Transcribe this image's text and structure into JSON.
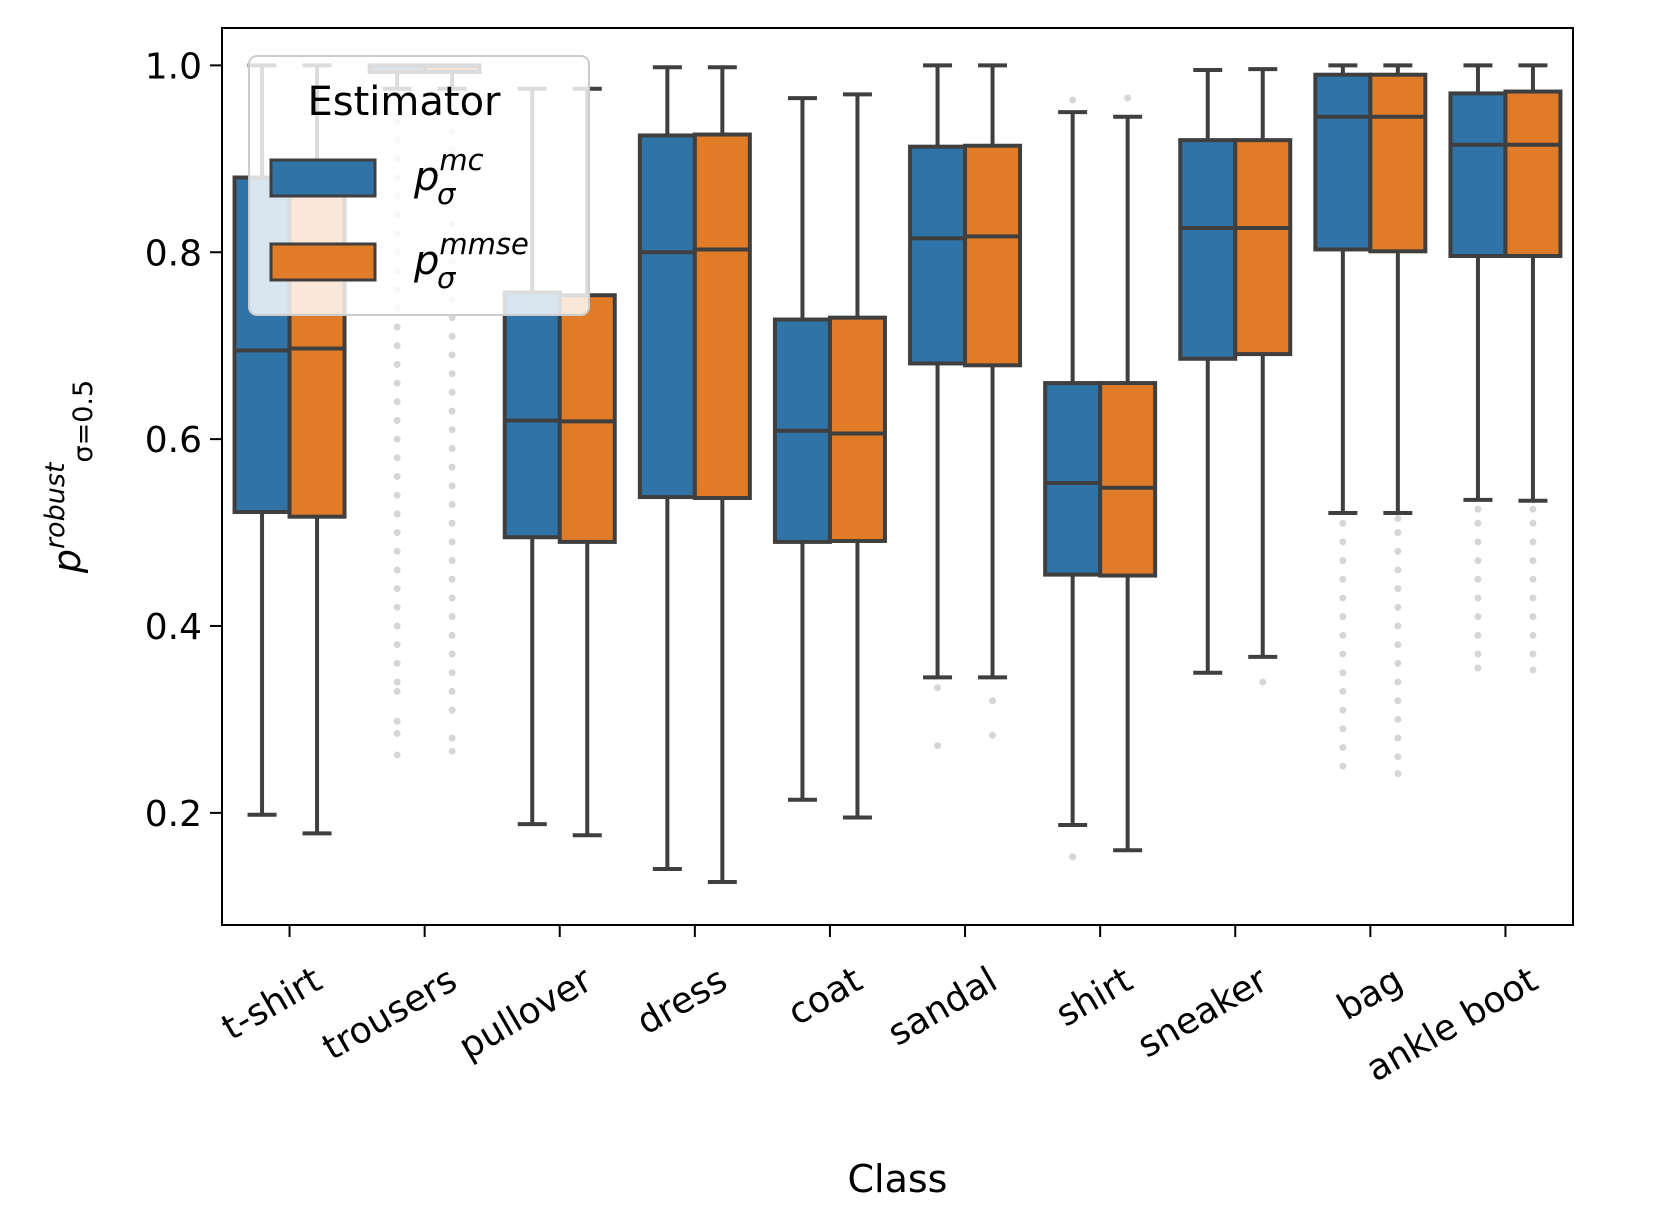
{
  "chart_data": {
    "type": "boxplot",
    "xlabel": "Class",
    "ylabel": {
      "base": "p",
      "sup": "robust",
      "sub": "σ=0.5"
    },
    "ylim": [
      0.08,
      1.04
    ],
    "yticks": [
      0.2,
      0.4,
      0.6,
      0.8,
      1.0
    ],
    "ytick_labels": [
      "0.2",
      "0.4",
      "0.6",
      "0.8",
      "1.0"
    ],
    "categories": [
      "t-shirt",
      "trousers",
      "pullover",
      "dress",
      "coat",
      "sandal",
      "shirt",
      "sneaker",
      "bag",
      "ankle boot"
    ],
    "grid": false,
    "legend": {
      "title": "Estimator",
      "placement": "top-left",
      "entries": [
        {
          "base": "p",
          "sup": "mc",
          "sub": "σ"
        },
        {
          "base": "p",
          "sup": "mmse",
          "sub": "σ"
        }
      ]
    },
    "series": [
      {
        "color": "#2f73a7",
        "boxes": [
          {
            "whislo": 0.198,
            "q1": 0.522,
            "med": 0.695,
            "q3": 0.88,
            "whishi": 1.0,
            "fliers": []
          },
          {
            "whislo": 0.975,
            "q1": 0.993,
            "med": 0.999,
            "q3": 1.0,
            "whishi": 1.0,
            "fliers": [
              0.262,
              0.285,
              0.298,
              0.33,
              0.34,
              0.36,
              0.38,
              0.4,
              0.42,
              0.44,
              0.46,
              0.48,
              0.5,
              0.52,
              0.54,
              0.56,
              0.58,
              0.6,
              0.62,
              0.64,
              0.66,
              0.68,
              0.7,
              0.72,
              0.74,
              0.76,
              0.78,
              0.8,
              0.82,
              0.84,
              0.86,
              0.88,
              0.9,
              0.92,
              0.94,
              0.96
            ]
          },
          {
            "whislo": 0.188,
            "q1": 0.495,
            "med": 0.62,
            "q3": 0.757,
            "whishi": 0.975,
            "fliers": []
          },
          {
            "whislo": 0.14,
            "q1": 0.538,
            "med": 0.8,
            "q3": 0.925,
            "whishi": 0.998,
            "fliers": []
          },
          {
            "whislo": 0.214,
            "q1": 0.49,
            "med": 0.609,
            "q3": 0.728,
            "whishi": 0.965,
            "fliers": []
          },
          {
            "whislo": 0.345,
            "q1": 0.681,
            "med": 0.815,
            "q3": 0.913,
            "whishi": 1.0,
            "fliers": [
              0.334,
              0.272
            ]
          },
          {
            "whislo": 0.187,
            "q1": 0.455,
            "med": 0.553,
            "q3": 0.66,
            "whishi": 0.95,
            "fliers": [
              0.963,
              0.153
            ]
          },
          {
            "whislo": 0.35,
            "q1": 0.686,
            "med": 0.826,
            "q3": 0.92,
            "whishi": 0.995,
            "fliers": []
          },
          {
            "whislo": 0.521,
            "q1": 0.803,
            "med": 0.945,
            "q3": 0.99,
            "whishi": 1.0,
            "fliers": [
              0.25,
              0.27,
              0.29,
              0.31,
              0.33,
              0.35,
              0.37,
              0.39,
              0.41,
              0.43,
              0.45,
              0.47,
              0.49,
              0.51
            ]
          },
          {
            "whislo": 0.535,
            "q1": 0.796,
            "med": 0.915,
            "q3": 0.97,
            "whishi": 1.0,
            "fliers": [
              0.355,
              0.37,
              0.39,
              0.41,
              0.43,
              0.45,
              0.47,
              0.49,
              0.51,
              0.525
            ]
          }
        ]
      },
      {
        "color": "#e07b28",
        "boxes": [
          {
            "whislo": 0.178,
            "q1": 0.517,
            "med": 0.697,
            "q3": 0.882,
            "whishi": 1.0,
            "fliers": []
          },
          {
            "whislo": 0.975,
            "q1": 0.993,
            "med": 0.999,
            "q3": 1.0,
            "whishi": 1.0,
            "fliers": [
              0.266,
              0.28,
              0.31,
              0.33,
              0.35,
              0.37,
              0.39,
              0.41,
              0.43,
              0.45,
              0.47,
              0.49,
              0.51,
              0.53,
              0.55,
              0.57,
              0.59,
              0.61,
              0.63,
              0.65,
              0.67,
              0.69,
              0.71,
              0.73,
              0.75,
              0.77,
              0.79,
              0.81,
              0.83,
              0.85,
              0.87,
              0.89,
              0.91,
              0.93,
              0.95
            ]
          },
          {
            "whislo": 0.176,
            "q1": 0.49,
            "med": 0.619,
            "q3": 0.754,
            "whishi": 0.975,
            "fliers": []
          },
          {
            "whislo": 0.126,
            "q1": 0.537,
            "med": 0.803,
            "q3": 0.926,
            "whishi": 0.998,
            "fliers": []
          },
          {
            "whislo": 0.195,
            "q1": 0.491,
            "med": 0.606,
            "q3": 0.73,
            "whishi": 0.969,
            "fliers": []
          },
          {
            "whislo": 0.345,
            "q1": 0.679,
            "med": 0.817,
            "q3": 0.914,
            "whishi": 1.0,
            "fliers": [
              0.32,
              0.283
            ]
          },
          {
            "whislo": 0.16,
            "q1": 0.454,
            "med": 0.548,
            "q3": 0.66,
            "whishi": 0.945,
            "fliers": [
              0.965
            ]
          },
          {
            "whislo": 0.367,
            "q1": 0.691,
            "med": 0.826,
            "q3": 0.92,
            "whishi": 0.996,
            "fliers": [
              0.34
            ]
          },
          {
            "whislo": 0.521,
            "q1": 0.801,
            "med": 0.945,
            "q3": 0.99,
            "whishi": 1.0,
            "fliers": [
              0.242,
              0.26,
              0.28,
              0.3,
              0.32,
              0.34,
              0.36,
              0.38,
              0.4,
              0.42,
              0.44,
              0.46,
              0.48,
              0.5,
              0.515
            ]
          },
          {
            "whislo": 0.534,
            "q1": 0.796,
            "med": 0.915,
            "q3": 0.972,
            "whishi": 1.0,
            "fliers": [
              0.353,
              0.37,
              0.39,
              0.41,
              0.43,
              0.45,
              0.47,
              0.49,
              0.51,
              0.525
            ]
          }
        ]
      }
    ]
  }
}
